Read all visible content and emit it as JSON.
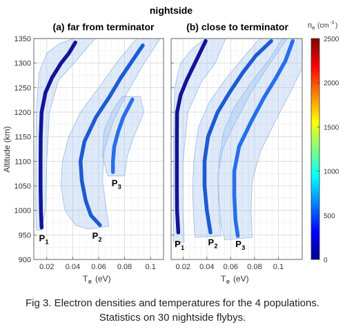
{
  "figure": {
    "title": "nightside",
    "caption_line1": "Fig 3. Electron densities and temperatures for the 4 populations.",
    "caption_line2": "Statistics on 30 nightside flybys."
  },
  "colorbar": {
    "label_main": "n",
    "label_sub": "e",
    "label_unit": "(cm",
    "label_exp": "-3",
    "label_close": ")",
    "min": 0,
    "max": 2500,
    "ticks": [
      0,
      500,
      1000,
      1500,
      2000,
      2500
    ]
  },
  "chart_data": [
    {
      "type": "line",
      "title": "(a) far from terminator",
      "xlabel_main": "T",
      "xlabel_sub": "e",
      "xlabel_unit": "(eV)",
      "ylabel": "Altitude (km)",
      "xlim": [
        0.01,
        0.11
      ],
      "ylim": [
        900,
        1350
      ],
      "xticks": [
        0.02,
        0.04,
        0.06,
        0.08,
        0.1
      ],
      "yticks": [
        900,
        950,
        1000,
        1050,
        1100,
        1150,
        1200,
        1250,
        1300,
        1350
      ],
      "xtick_labels": [
        "0.02",
        "0.04",
        "0.06",
        "0.08",
        "0.1"
      ],
      "ytick_labels": [
        "900",
        "950",
        "1000",
        "1050",
        "1100",
        "1150",
        "1200",
        "1250",
        "1300",
        "1350"
      ],
      "grid": true,
      "series": [
        {
          "name": "P",
          "sub": "1",
          "color": "#141496",
          "points": [
            [
              0.016,
              965
            ],
            [
              0.0155,
              1000
            ],
            [
              0.0152,
              1050
            ],
            [
              0.0152,
              1100
            ],
            [
              0.0153,
              1150
            ],
            [
              0.016,
              1200
            ],
            [
              0.019,
              1240
            ],
            [
              0.024,
              1270
            ],
            [
              0.031,
              1300
            ],
            [
              0.037,
              1320
            ],
            [
              0.042,
              1342
            ]
          ],
          "envelope": [
            [
              0.012,
              960
            ],
            [
              0.016,
              960
            ],
            [
              0.019,
              1000
            ],
            [
              0.02,
              1100
            ],
            [
              0.022,
              1200
            ],
            [
              0.029,
              1265
            ],
            [
              0.041,
              1300
            ],
            [
              0.058,
              1352
            ],
            [
              0.043,
              1352
            ],
            [
              0.03,
              1340
            ],
            [
              0.02,
              1320
            ],
            [
              0.014,
              1280
            ],
            [
              0.012,
              1200
            ],
            [
              0.0115,
              1100
            ],
            [
              0.0115,
              1000
            ]
          ],
          "label_at": [
            0.014,
            937
          ]
        },
        {
          "name": "P",
          "sub": "2",
          "color": "#1e5ad2",
          "points": [
            [
              0.061,
              970
            ],
            [
              0.054,
              990
            ],
            [
              0.05,
              1020
            ],
            [
              0.047,
              1060
            ],
            [
              0.046,
              1100
            ],
            [
              0.049,
              1140
            ],
            [
              0.058,
              1190
            ],
            [
              0.068,
              1230
            ],
            [
              0.077,
              1270
            ],
            [
              0.086,
              1305
            ],
            [
              0.094,
              1336
            ]
          ],
          "envelope": [
            [
              0.052,
              962
            ],
            [
              0.068,
              968
            ],
            [
              0.066,
              1000
            ],
            [
              0.063,
              1060
            ],
            [
              0.064,
              1120
            ],
            [
              0.071,
              1180
            ],
            [
              0.082,
              1240
            ],
            [
              0.095,
              1300
            ],
            [
              0.108,
              1352
            ],
            [
              0.09,
              1352
            ],
            [
              0.075,
              1305
            ],
            [
              0.06,
              1250
            ],
            [
              0.046,
              1200
            ],
            [
              0.037,
              1150
            ],
            [
              0.032,
              1100
            ],
            [
              0.031,
              1050
            ],
            [
              0.034,
              1000
            ],
            [
              0.042,
              970
            ]
          ],
          "label_at": [
            0.055,
            942
          ]
        },
        {
          "name": "P",
          "sub": "3",
          "color": "#2a6ee8",
          "points": [
            [
              0.071,
              1078
            ],
            [
              0.071,
              1100
            ],
            [
              0.072,
              1130
            ],
            [
              0.075,
              1160
            ],
            [
              0.079,
              1190
            ],
            [
              0.086,
              1226
            ]
          ],
          "envelope": [
            [
              0.067,
              1070
            ],
            [
              0.08,
              1070
            ],
            [
              0.082,
              1110
            ],
            [
              0.087,
              1150
            ],
            [
              0.095,
              1200
            ],
            [
              0.092,
              1232
            ],
            [
              0.078,
              1232
            ],
            [
              0.07,
              1200
            ],
            [
              0.064,
              1160
            ],
            [
              0.063,
              1110
            ]
          ],
          "label_at": [
            0.07,
            1049
          ]
        }
      ]
    },
    {
      "type": "line",
      "title": "(b) close to terminator",
      "xlabel_main": "T",
      "xlabel_sub": "e",
      "xlabel_unit": "(eV)",
      "ylabel": "",
      "xlim": [
        0.01,
        0.12
      ],
      "ylim": [
        900,
        1350
      ],
      "xticks": [
        0.02,
        0.04,
        0.06,
        0.08,
        0.1
      ],
      "yticks": [
        900,
        950,
        1000,
        1050,
        1100,
        1150,
        1200,
        1250,
        1300,
        1350
      ],
      "xtick_labels": [
        "0.02",
        "0.04",
        "0.06",
        "0.08",
        "0.1"
      ],
      "ytick_labels": [],
      "grid": true,
      "series": [
        {
          "name": "P",
          "sub": "1",
          "color": "#141496",
          "points": [
            [
              0.016,
              955
            ],
            [
              0.015,
              1000
            ],
            [
              0.0148,
              1050
            ],
            [
              0.0148,
              1100
            ],
            [
              0.0148,
              1150
            ],
            [
              0.015,
              1200
            ],
            [
              0.018,
              1235
            ],
            [
              0.023,
              1265
            ],
            [
              0.03,
              1300
            ],
            [
              0.036,
              1330
            ],
            [
              0.039,
              1345
            ]
          ],
          "envelope": [
            [
              0.012,
              935
            ],
            [
              0.021,
              935
            ],
            [
              0.02,
              1000
            ],
            [
              0.02,
              1100
            ],
            [
              0.024,
              1200
            ],
            [
              0.035,
              1260
            ],
            [
              0.047,
              1300
            ],
            [
              0.056,
              1352
            ],
            [
              0.04,
              1352
            ],
            [
              0.028,
              1330
            ],
            [
              0.018,
              1300
            ],
            [
              0.013,
              1250
            ],
            [
              0.012,
              1150
            ],
            [
              0.012,
              1050
            ],
            [
              0.012,
              960
            ]
          ],
          "label_at": [
            0.013,
            925
          ]
        },
        {
          "name": "P",
          "sub": "2",
          "color": "#1e5ad2",
          "points": [
            [
              0.043,
              955
            ],
            [
              0.04,
              1000
            ],
            [
              0.038,
              1050
            ],
            [
              0.038,
              1100
            ],
            [
              0.041,
              1150
            ],
            [
              0.049,
              1200
            ],
            [
              0.059,
              1240
            ],
            [
              0.07,
              1280
            ],
            [
              0.081,
              1315
            ],
            [
              0.094,
              1345
            ]
          ],
          "envelope": [
            [
              0.03,
              945
            ],
            [
              0.052,
              948
            ],
            [
              0.05,
              1000
            ],
            [
              0.049,
              1070
            ],
            [
              0.054,
              1130
            ],
            [
              0.064,
              1180
            ],
            [
              0.077,
              1240
            ],
            [
              0.093,
              1300
            ],
            [
              0.108,
              1352
            ],
            [
              0.085,
              1352
            ],
            [
              0.07,
              1310
            ],
            [
              0.055,
              1265
            ],
            [
              0.042,
              1220
            ],
            [
              0.033,
              1170
            ],
            [
              0.029,
              1100
            ],
            [
              0.028,
              1040
            ],
            [
              0.029,
              980
            ]
          ],
          "label_at": [
            0.041,
            929
          ]
        },
        {
          "name": "P",
          "sub": "3",
          "color": "#2a6ee8",
          "points": [
            [
              0.066,
              948
            ],
            [
              0.064,
              980
            ],
            [
              0.063,
              1030
            ],
            [
              0.063,
              1080
            ],
            [
              0.067,
              1130
            ],
            [
              0.077,
              1180
            ],
            [
              0.088,
              1230
            ],
            [
              0.098,
              1270
            ],
            [
              0.106,
              1305
            ],
            [
              0.112,
              1345
            ]
          ],
          "envelope": [
            [
              0.055,
              940
            ],
            [
              0.078,
              945
            ],
            [
              0.077,
              1000
            ],
            [
              0.078,
              1060
            ],
            [
              0.085,
              1120
            ],
            [
              0.097,
              1180
            ],
            [
              0.11,
              1240
            ],
            [
              0.12,
              1290
            ],
            [
              0.12,
              1352
            ],
            [
              0.104,
              1352
            ],
            [
              0.093,
              1310
            ],
            [
              0.077,
              1260
            ],
            [
              0.063,
              1210
            ],
            [
              0.054,
              1160
            ],
            [
              0.05,
              1100
            ],
            [
              0.05,
              1030
            ],
            [
              0.052,
              970
            ]
          ],
          "label_at": [
            0.064,
            925
          ]
        }
      ]
    }
  ]
}
